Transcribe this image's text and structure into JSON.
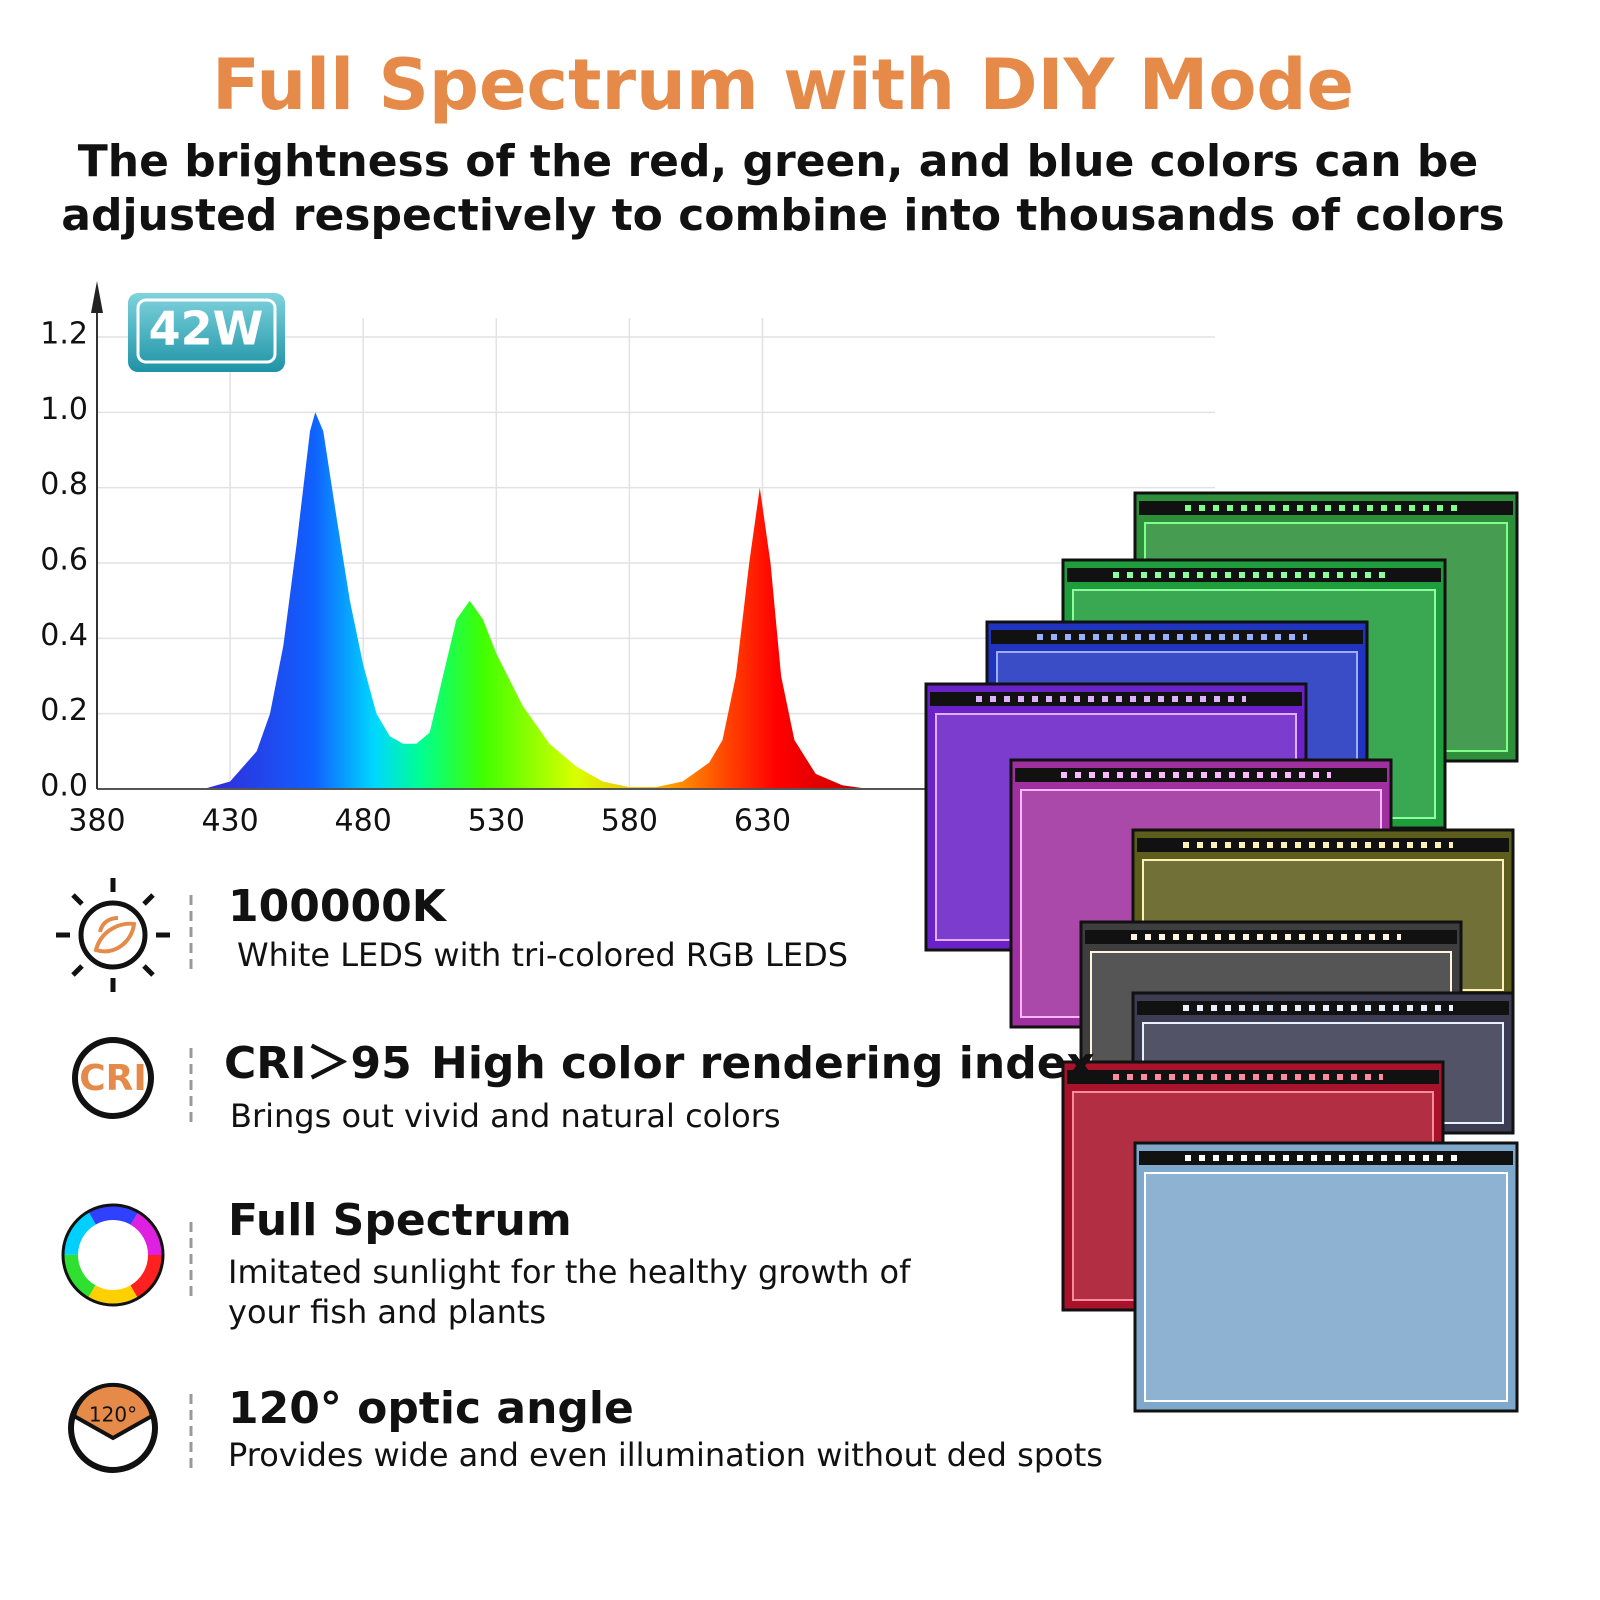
{
  "title": "Full Spectrum with DIY Mode",
  "subtitle": [
    "The brightness of the red, green, and blue colors can be",
    "adjusted respectively to combine into thousands of colors"
  ],
  "badge": "42W",
  "chart_data": {
    "type": "area",
    "x": [
      380,
      420,
      430,
      440,
      445,
      450,
      455,
      460,
      462,
      465,
      470,
      475,
      480,
      485,
      490,
      495,
      500,
      505,
      510,
      515,
      520,
      525,
      530,
      540,
      550,
      560,
      570,
      580,
      590,
      600,
      610,
      615,
      620,
      625,
      629,
      633,
      637,
      642,
      650,
      660,
      670
    ],
    "values": [
      0,
      0,
      0.02,
      0.1,
      0.2,
      0.38,
      0.65,
      0.95,
      1.0,
      0.95,
      0.72,
      0.5,
      0.33,
      0.2,
      0.14,
      0.12,
      0.12,
      0.15,
      0.3,
      0.45,
      0.5,
      0.45,
      0.36,
      0.22,
      0.12,
      0.06,
      0.02,
      0.005,
      0.005,
      0.02,
      0.07,
      0.13,
      0.3,
      0.6,
      0.8,
      0.6,
      0.3,
      0.13,
      0.04,
      0.01,
      0
    ],
    "xlim": [
      380,
      800
    ],
    "ylim": [
      0,
      1.2
    ],
    "xticks": [
      380,
      430,
      480,
      530,
      580,
      630
    ],
    "yticks": [
      {
        "value": 0,
        "label": "0.0"
      },
      0.2,
      0.4,
      0.6,
      0.8,
      {
        "value": 1,
        "label": "1.0"
      },
      1.2
    ],
    "grid": true
  },
  "features": [
    {
      "icon": "",
      "title": "100000K",
      "text": [
        "White LEDS with tri-colored RGB LEDS"
      ]
    },
    {
      "icon": "CRI",
      "title": "CRI＞95",
      "title2": "High color rendering index",
      "text": [
        "Brings out vivid and natural colors"
      ]
    },
    {
      "icon": "",
      "title": "Full Spectrum",
      "text": [
        "Imitated sunlight for the healthy growth of",
        "your fish and plants"
      ]
    },
    {
      "icon": "120°",
      "title": "120° optic angle",
      "text": [
        "Provides wide and even illumination without ded spots"
      ]
    }
  ]
}
